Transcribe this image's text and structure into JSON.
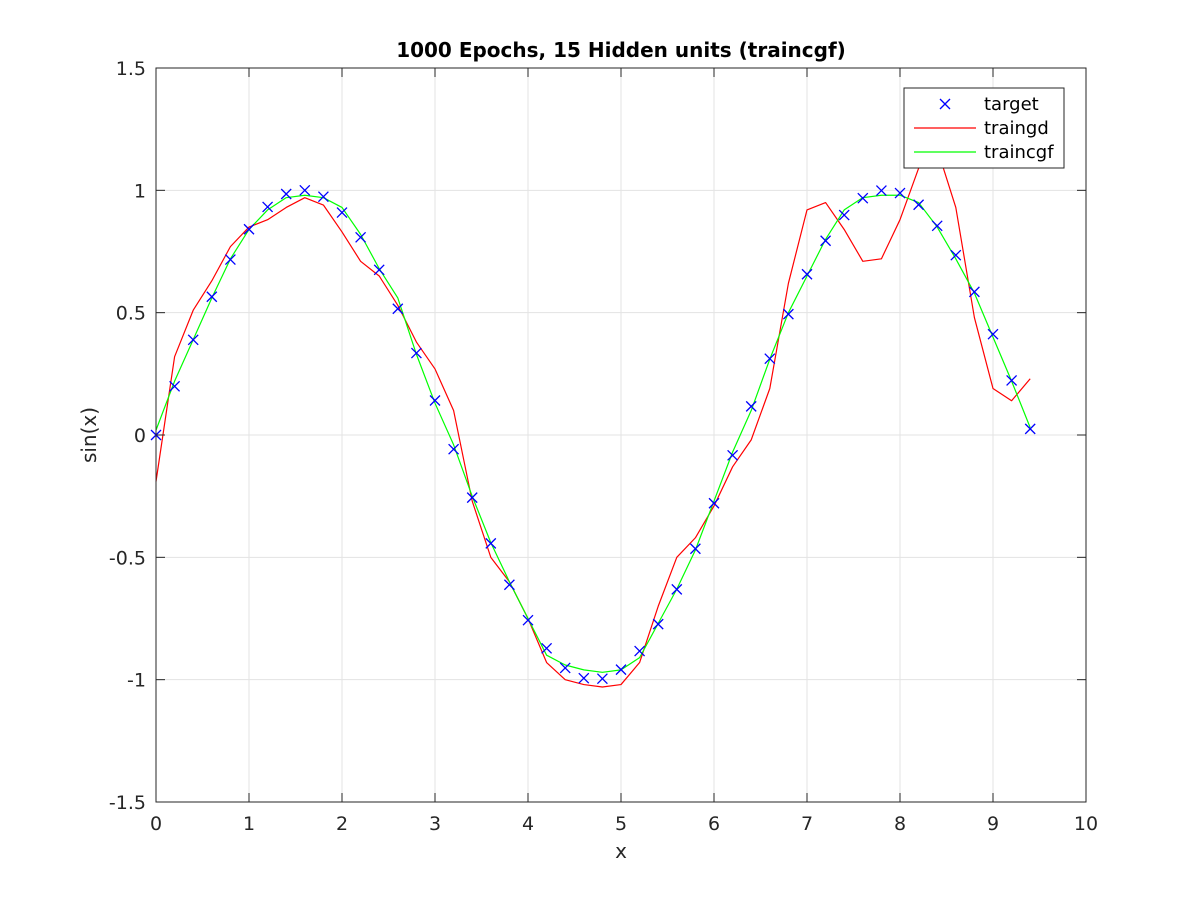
{
  "chart_data": {
    "type": "line",
    "title": "1000 Epochs, 15 Hidden units (traincgf)",
    "xlabel": "x",
    "ylabel": "sin(x)",
    "xlim": [
      0,
      10
    ],
    "ylim": [
      -1.5,
      1.5
    ],
    "xticks": [
      0,
      1,
      2,
      3,
      4,
      5,
      6,
      7,
      8,
      9,
      10
    ],
    "yticks": [
      -1.5,
      -1,
      -0.5,
      0,
      0.5,
      1,
      1.5
    ],
    "xtick_labels": [
      "0",
      "1",
      "2",
      "3",
      "4",
      "5",
      "6",
      "7",
      "8",
      "9",
      "10"
    ],
    "ytick_labels": [
      "-1.5",
      "-1",
      "-0.5",
      "0",
      "0.5",
      "1",
      "1.5"
    ],
    "grid": true,
    "legend_position": "top-right",
    "x": [
      0,
      0.2,
      0.4,
      0.6,
      0.8,
      1.0,
      1.2,
      1.4,
      1.6,
      1.8,
      2.0,
      2.2,
      2.4,
      2.6,
      2.8,
      3.0,
      3.2,
      3.4,
      3.6,
      3.8,
      4.0,
      4.2,
      4.4,
      4.6,
      4.8,
      5.0,
      5.2,
      5.4,
      5.6,
      5.8,
      6.0,
      6.2,
      6.4,
      6.6,
      6.8,
      7.0,
      7.2,
      7.4,
      7.6,
      7.8,
      8.0,
      8.2,
      8.4,
      8.6,
      8.8,
      9.0,
      9.2,
      9.4
    ],
    "series": [
      {
        "name": "target",
        "style": "marker-x",
        "color": "#0000ff",
        "values": [
          0.0,
          0.199,
          0.389,
          0.565,
          0.717,
          0.841,
          0.932,
          0.985,
          1.0,
          0.974,
          0.909,
          0.808,
          0.675,
          0.516,
          0.335,
          0.141,
          -0.058,
          -0.256,
          -0.443,
          -0.612,
          -0.757,
          -0.872,
          -0.952,
          -0.994,
          -0.996,
          -0.959,
          -0.883,
          -0.773,
          -0.631,
          -0.465,
          -0.279,
          -0.083,
          0.117,
          0.312,
          0.494,
          0.657,
          0.794,
          0.899,
          0.968,
          0.999,
          0.989,
          0.941,
          0.855,
          0.735,
          0.585,
          0.412,
          0.223,
          0.025
        ]
      },
      {
        "name": "traingd",
        "style": "line",
        "color": "#ff0000",
        "values": [
          -0.19,
          0.32,
          0.51,
          0.63,
          0.77,
          0.85,
          0.88,
          0.93,
          0.97,
          0.94,
          0.83,
          0.71,
          0.65,
          0.53,
          0.38,
          0.27,
          0.1,
          -0.27,
          -0.5,
          -0.6,
          -0.75,
          -0.93,
          -1.0,
          -1.02,
          -1.03,
          -1.02,
          -0.93,
          -0.7,
          -0.5,
          -0.42,
          -0.29,
          -0.13,
          -0.02,
          0.19,
          0.62,
          0.92,
          0.95,
          0.84,
          0.71,
          0.72,
          0.88,
          1.09,
          1.17,
          0.93,
          0.48,
          0.19,
          0.14,
          0.23
        ]
      },
      {
        "name": "traincgf",
        "style": "line",
        "color": "#00ff00",
        "values": [
          0.02,
          0.22,
          0.39,
          0.56,
          0.72,
          0.84,
          0.92,
          0.97,
          0.98,
          0.97,
          0.93,
          0.82,
          0.68,
          0.56,
          0.33,
          0.13,
          -0.04,
          -0.25,
          -0.44,
          -0.6,
          -0.75,
          -0.9,
          -0.94,
          -0.96,
          -0.97,
          -0.96,
          -0.91,
          -0.77,
          -0.63,
          -0.47,
          -0.27,
          -0.07,
          0.1,
          0.31,
          0.5,
          0.65,
          0.8,
          0.92,
          0.97,
          0.98,
          0.98,
          0.95,
          0.85,
          0.72,
          0.58,
          0.4,
          0.22,
          0.03
        ]
      }
    ]
  }
}
